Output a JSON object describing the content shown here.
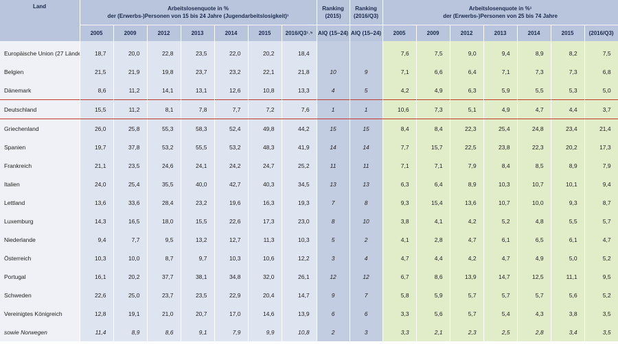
{
  "headers": {
    "land": "Land",
    "youth_title_line1": "Arbeitslosenquote in %",
    "youth_title_line2": "der (Erwerbs-)Personen von 15 bis 24 Jahre (Jugendarbeitslosigkeit)¹",
    "ranking1_line1": "Ranking",
    "ranking1_line2": "(2015)",
    "ranking2_line1": "Ranking",
    "ranking2_line2": "(2016/Q3)",
    "adult_title_line1": "Arbeitslosenquote in %¹",
    "adult_title_line2": "der (Erwerbs-)Personen von 25 bis 74 Jahre",
    "youth_years": [
      "2005",
      "2009",
      "2012",
      "2013",
      "2014",
      "2015",
      "2016/Q3¹˒⁵"
    ],
    "ranking_sub": [
      "AlQ (15–24)",
      "AlQ (15–24)"
    ],
    "adult_years": [
      "2005",
      "2009",
      "2012",
      "2013",
      "2014",
      "2015",
      "(2016/Q3)"
    ]
  },
  "rows": [
    {
      "land": "Europäische Union (27 Länder)",
      "youth": [
        "18,7",
        "20,0",
        "22,8",
        "23,5",
        "22,0",
        "20,2",
        "18,4"
      ],
      "rank2015": "",
      "rank2016": "",
      "adult": [
        "7,6",
        "7,5",
        "9,0",
        "9,4",
        "8,9",
        "8,2",
        "7,5"
      ]
    },
    {
      "land": "Belgien",
      "youth": [
        "21,5",
        "21,9",
        "19,8",
        "23,7",
        "23,2",
        "22,1",
        "21,8"
      ],
      "rank2015": "10",
      "rank2016": "9",
      "adult": [
        "7,1",
        "6,6",
        "6,4",
        "7,1",
        "7,3",
        "7,3",
        "6,8"
      ]
    },
    {
      "land": "Dänemark",
      "youth": [
        "8,6",
        "11,2",
        "14,1",
        "13,1",
        "12,6",
        "10,8",
        "13,3"
      ],
      "rank2015": "4",
      "rank2016": "5",
      "adult": [
        "4,2",
        "4,9",
        "6,3",
        "5,9",
        "5,5",
        "5,3",
        "5,0"
      ]
    },
    {
      "land": "Deutschland",
      "youth": [
        "15,5",
        "11,2",
        "8,1",
        "7,8",
        "7,7",
        "7,2",
        "7,6"
      ],
      "rank2015": "1",
      "rank2016": "1",
      "adult": [
        "10,6",
        "7,3",
        "5,1",
        "4,9",
        "4,7",
        "4,4",
        "3,7"
      ]
    },
    {
      "land": "Griechenland",
      "youth": [
        "26,0",
        "25,8",
        "55,3",
        "58,3",
        "52,4",
        "49,8",
        "44,2"
      ],
      "rank2015": "15",
      "rank2016": "15",
      "adult": [
        "8,4",
        "8,4",
        "22,3",
        "25,4",
        "24,8",
        "23,4",
        "21,4"
      ]
    },
    {
      "land": "Spanien",
      "youth": [
        "19,7",
        "37,8",
        "53,2",
        "55,5",
        "53,2",
        "48,3",
        "41,9"
      ],
      "rank2015": "14",
      "rank2016": "14",
      "adult": [
        "7,7",
        "15,7",
        "22,5",
        "23,8",
        "22,3",
        "20,2",
        "17,3"
      ]
    },
    {
      "land": "Frankreich",
      "youth": [
        "21,1",
        "23,5",
        "24,6",
        "24,1",
        "24,2",
        "24,7",
        "25,2"
      ],
      "rank2015": "11",
      "rank2016": "11",
      "adult": [
        "7,1",
        "7,1",
        "7,9",
        "8,4",
        "8,5",
        "8,9",
        "7,9"
      ]
    },
    {
      "land": "Italien",
      "youth": [
        "24,0",
        "25,4",
        "35,5",
        "40,0",
        "42,7",
        "40,3",
        "34,5"
      ],
      "rank2015": "13",
      "rank2016": "13",
      "adult": [
        "6,3",
        "6,4",
        "8,9",
        "10,3",
        "10,7",
        "10,1",
        "9,4"
      ]
    },
    {
      "land": "Lettland",
      "youth": [
        "13,6",
        "33,6",
        "28,4",
        "23,2",
        "19,6",
        "16,3",
        "19,3"
      ],
      "rank2015": "7",
      "rank2016": "8",
      "adult": [
        "9,3",
        "15,4",
        "13,6",
        "10,7",
        "10,0",
        "9,3",
        "8,7"
      ]
    },
    {
      "land": "Luxemburg",
      "youth": [
        "14,3",
        "16,5",
        "18,0",
        "15,5",
        "22,6",
        "17,3",
        "23,0"
      ],
      "rank2015": "8",
      "rank2016": "10",
      "adult": [
        "3,8",
        "4,1",
        "4,2",
        "5,2",
        "4,8",
        "5,5",
        "5,7"
      ]
    },
    {
      "land": "Niederlande",
      "youth": [
        "9,4",
        "7,7",
        "9,5",
        "13,2",
        "12,7",
        "11,3",
        "10,3"
      ],
      "rank2015": "5",
      "rank2016": "2",
      "adult": [
        "4,1",
        "2,8",
        "4,7",
        "6,1",
        "6,5",
        "6,1",
        "4,7"
      ]
    },
    {
      "land": "Österreich",
      "youth": [
        "10,3",
        "10,0",
        "8,7",
        "9,7",
        "10,3",
        "10,6",
        "12,2"
      ],
      "rank2015": "3",
      "rank2016": "4",
      "adult": [
        "4,7",
        "4,4",
        "4,2",
        "4,7",
        "4,9",
        "5,0",
        "5,2"
      ]
    },
    {
      "land": "Portugal",
      "youth": [
        "16,1",
        "20,2",
        "37,7",
        "38,1",
        "34,8",
        "32,0",
        "26,1"
      ],
      "rank2015": "12",
      "rank2016": "12",
      "adult": [
        "6,7",
        "8,6",
        "13,9",
        "14,7",
        "12,5",
        "11,1",
        "9,5"
      ]
    },
    {
      "land": "Schweden",
      "youth": [
        "22,6",
        "25,0",
        "23,7",
        "23,5",
        "22,9",
        "20,4",
        "14,7"
      ],
      "rank2015": "9",
      "rank2016": "7",
      "adult": [
        "5,8",
        "5,9",
        "5,7",
        "5,7",
        "5,7",
        "5,6",
        "5,2"
      ]
    },
    {
      "land": "Vereinigtes Königreich",
      "youth": [
        "12,8",
        "19,1",
        "21,0",
        "20,7",
        "17,0",
        "14,6",
        "13,9"
      ],
      "rank2015": "6",
      "rank2016": "6",
      "adult": [
        "3,3",
        "5,6",
        "5,7",
        "5,4",
        "4,3",
        "3,8",
        "3,5"
      ]
    },
    {
      "land": "sowie Norwegen",
      "youth": [
        "11,4",
        "8,9",
        "8,6",
        "9,1",
        "7,9",
        "9,9",
        "10,8"
      ],
      "rank2015": "2",
      "rank2016": "3",
      "adult": [
        "3,3",
        "2,1",
        "2,3",
        "2,5",
        "2,8",
        "3,4",
        "3,5"
      ]
    }
  ]
}
